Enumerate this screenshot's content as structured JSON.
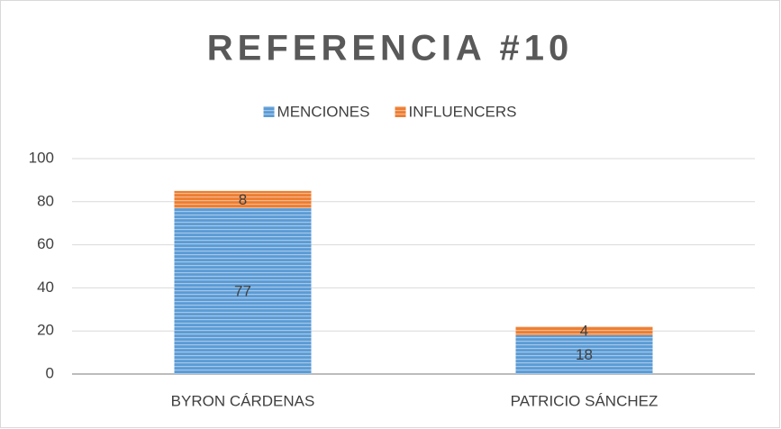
{
  "chart_data": {
    "type": "bar",
    "stacked": true,
    "title": "REFERENCIA #10",
    "categories": [
      "BYRON CÁRDENAS",
      "PATRICIO SÁNCHEZ"
    ],
    "series": [
      {
        "name": "MENCIONES",
        "color": "#5b9bd5",
        "values": [
          77,
          18
        ]
      },
      {
        "name": "INFLUENCERS",
        "color": "#ed7d31",
        "values": [
          8,
          4
        ]
      }
    ],
    "ylim": [
      0,
      100
    ],
    "yticks": [
      0,
      20,
      40,
      60,
      80,
      100
    ],
    "grid": true,
    "legend": "top"
  }
}
